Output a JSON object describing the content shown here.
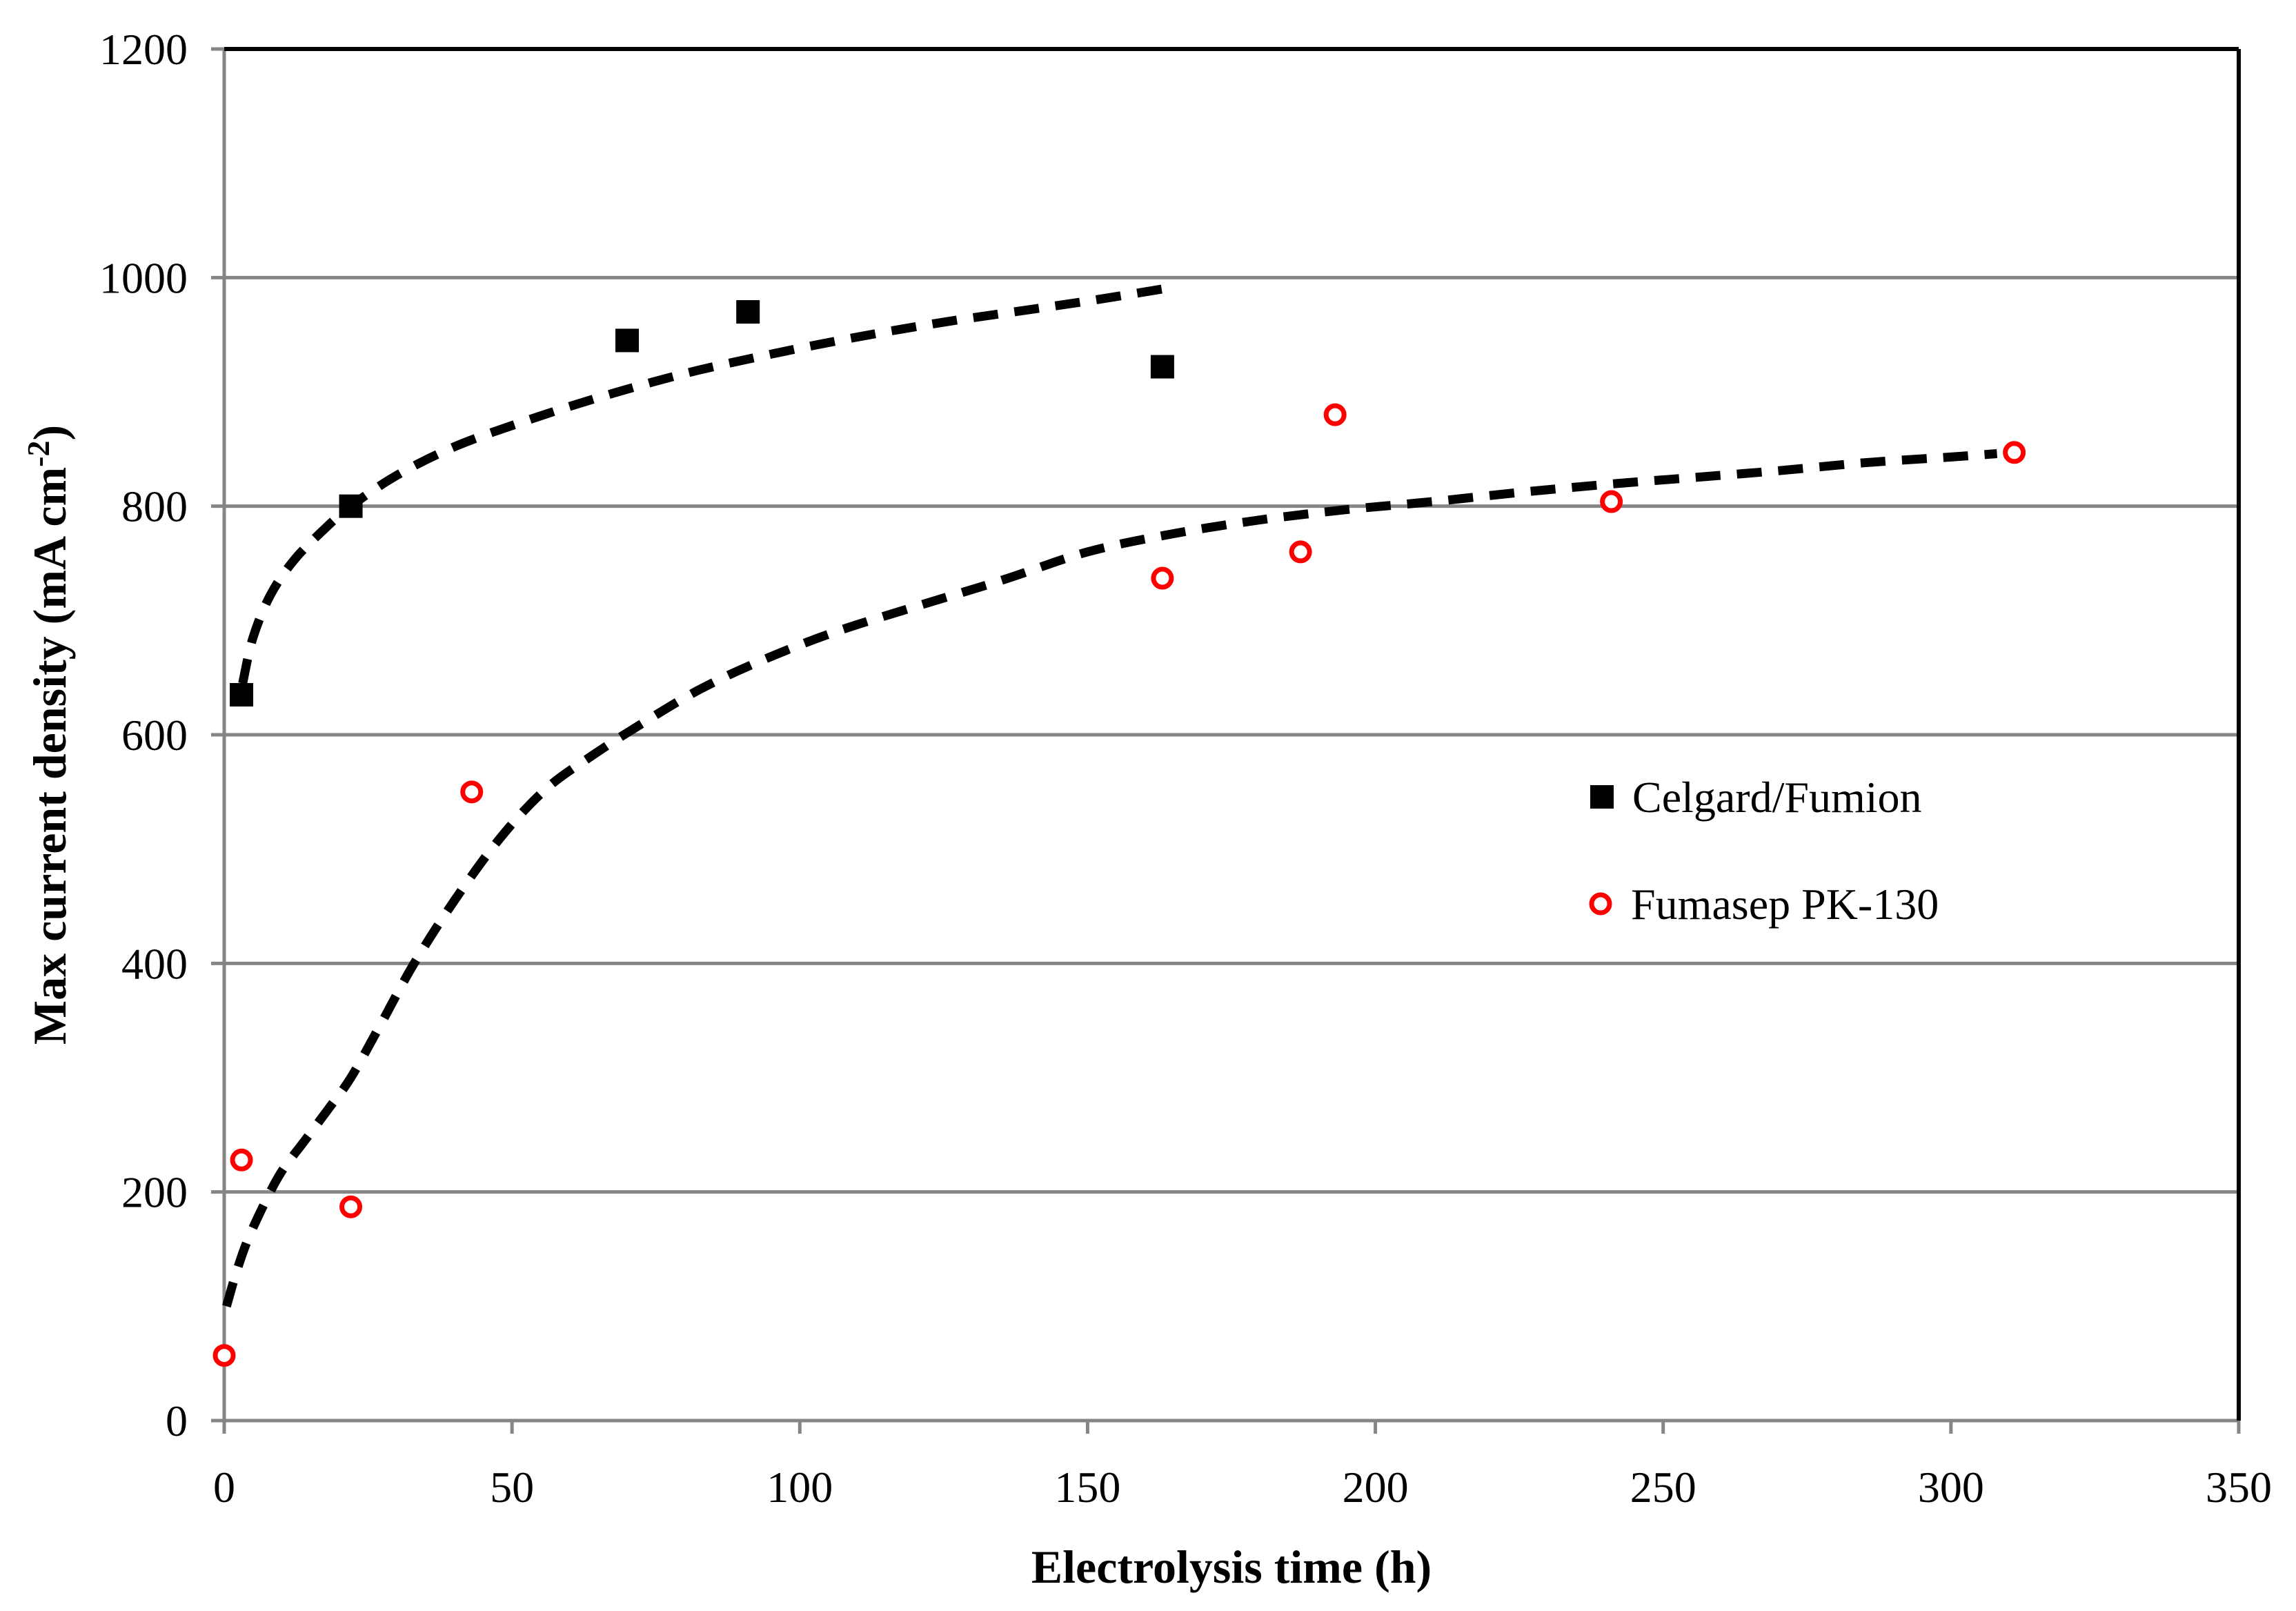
{
  "colors": {
    "background": "#ffffff",
    "grid": "#858585",
    "axis": "#858585",
    "border": "#000000",
    "trend": "#000000",
    "text": "#000000",
    "series1": "#000000",
    "series2": "#ff0000"
  },
  "chart_data": {
    "type": "scatter",
    "title": "",
    "xlabel": "Electrolysis time (h)",
    "ylabel": "Max current density (mA cm-2)",
    "ylabel_parts": {
      "main": "Max current density (mA cm",
      "sup": "-2",
      "close": ")"
    },
    "xlim": [
      0,
      350
    ],
    "ylim": [
      0,
      1200
    ],
    "x_ticks": [
      0,
      50,
      100,
      150,
      200,
      250,
      300,
      350
    ],
    "y_ticks": [
      0,
      200,
      400,
      600,
      800,
      1000,
      1200
    ],
    "grid": "horizontal-only",
    "legend_position": "inside-center-right",
    "trendline_style": "dashed-black",
    "series": [
      {
        "name": "Celgard/Fumion",
        "marker": "filled-square",
        "color": "#000000",
        "points": [
          [
            3,
            635
          ],
          [
            22,
            800
          ],
          [
            70,
            945
          ],
          [
            91,
            970
          ],
          [
            163,
            922
          ]
        ],
        "trend": [
          [
            3.2,
            645
          ],
          [
            5,
            685
          ],
          [
            8,
            722
          ],
          [
            12,
            752
          ],
          [
            17,
            778
          ],
          [
            22,
            800
          ],
          [
            30,
            827
          ],
          [
            40,
            852
          ],
          [
            52,
            874
          ],
          [
            65,
            895
          ],
          [
            80,
            916
          ],
          [
            95,
            933
          ],
          [
            110,
            948
          ],
          [
            125,
            961
          ],
          [
            140,
            972
          ],
          [
            152,
            981
          ],
          [
            163,
            990
          ]
        ]
      },
      {
        "name": "Fumasep PK-130",
        "marker": "open-circle",
        "color": "#ff0000",
        "points": [
          [
            0,
            57
          ],
          [
            3,
            228
          ],
          [
            22,
            187
          ],
          [
            43,
            550
          ],
          [
            163,
            737
          ],
          [
            187,
            760
          ],
          [
            193,
            880
          ],
          [
            241,
            804
          ],
          [
            311,
            847
          ]
        ],
        "trend": [
          [
            0.4,
            100
          ],
          [
            2,
            128
          ],
          [
            4,
            157
          ],
          [
            7,
            190
          ],
          [
            10,
            218
          ],
          [
            14,
            245
          ],
          [
            18,
            272
          ],
          [
            22,
            300
          ],
          [
            27,
            345
          ],
          [
            33,
            400
          ],
          [
            40,
            455
          ],
          [
            48,
            510
          ],
          [
            56,
            553
          ],
          [
            64,
            582
          ],
          [
            72,
            608
          ],
          [
            82,
            638
          ],
          [
            92,
            662
          ],
          [
            105,
            688
          ],
          [
            120,
            712
          ],
          [
            135,
            735
          ],
          [
            150,
            760
          ],
          [
            165,
            776
          ],
          [
            180,
            788
          ],
          [
            195,
            797
          ],
          [
            210,
            804
          ],
          [
            225,
            812
          ],
          [
            240,
            819
          ],
          [
            255,
            825
          ],
          [
            270,
            831
          ],
          [
            285,
            838
          ],
          [
            300,
            843
          ],
          [
            308,
            846
          ]
        ]
      }
    ]
  }
}
